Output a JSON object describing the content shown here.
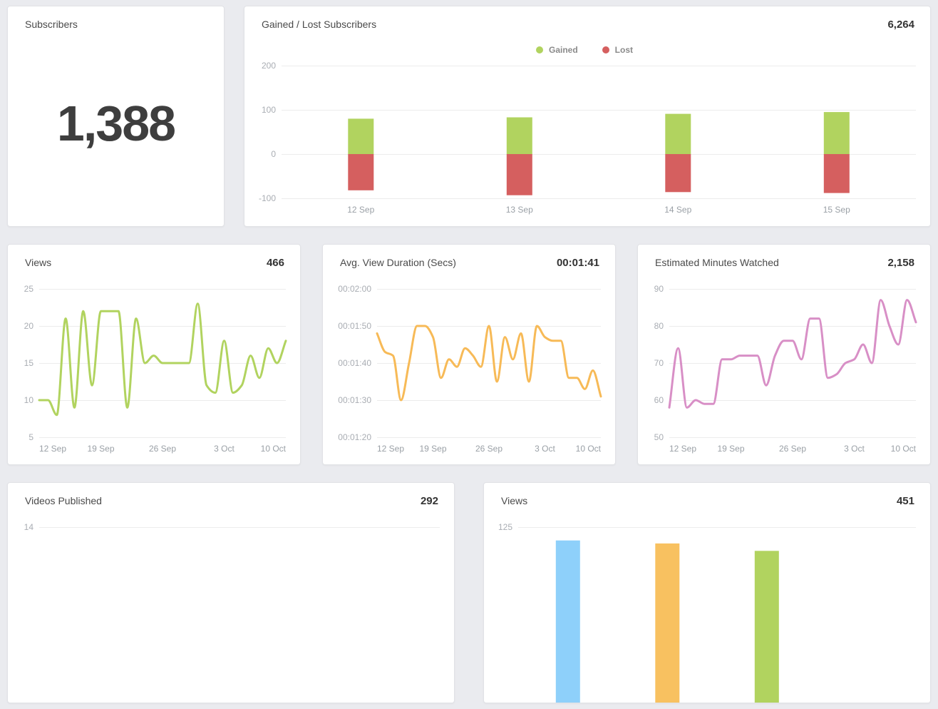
{
  "ui_colors": {
    "background": "#eaebef",
    "card": "#ffffff",
    "title_text": "#4a4a4a",
    "value_text": "#333333",
    "tick_text": "#a9adb3",
    "axis_label_text": "#9aa0a6",
    "grid_line": "#ececec",
    "legend_text": "#8a8a8a"
  },
  "cards": {
    "subscribers": {
      "title": "Subscribers",
      "value": "1,388"
    }
  },
  "chart_data": [
    {
      "id": "gained_lost",
      "type": "bar",
      "title": "Gained / Lost Subscribers",
      "headline_value": "6,264",
      "categories": [
        "12 Sep",
        "13 Sep",
        "14 Sep",
        "15 Sep"
      ],
      "series": [
        {
          "name": "Gained",
          "color": "#b1d35f",
          "values": [
            80,
            83,
            91,
            95
          ]
        },
        {
          "name": "Lost",
          "color": "#d55f5f",
          "values": [
            -82,
            -93,
            -86,
            -88
          ]
        }
      ],
      "yticks": [
        200,
        100,
        0,
        -100
      ],
      "ylim": [
        -100,
        200
      ],
      "legend_position": "top-center",
      "grid": true
    },
    {
      "id": "views_line",
      "type": "line",
      "title": "Views",
      "headline_value": "466",
      "color": "#b1d35f",
      "xticks": [
        "12 Sep",
        "19 Sep",
        "26 Sep",
        "3 Oct",
        "10 Oct"
      ],
      "values": [
        10,
        10,
        8,
        21,
        9,
        22,
        12,
        22,
        22,
        22,
        9,
        21,
        15,
        16,
        15,
        15,
        15,
        15,
        23,
        12,
        11,
        18,
        11,
        12,
        16,
        13,
        17,
        15,
        18
      ],
      "yticks": [
        25,
        20,
        15,
        10,
        5
      ],
      "ylim": [
        5,
        25
      ],
      "grid": true
    },
    {
      "id": "avg_view_duration",
      "type": "line",
      "title": "Avg. View Duration (Secs)",
      "headline_value": "00:01:41",
      "color": "#f7ba57",
      "xticks": [
        "12 Sep",
        "19 Sep",
        "26 Sep",
        "3 Oct",
        "10 Oct"
      ],
      "values": [
        108,
        103,
        102,
        90,
        100,
        110,
        110,
        107,
        96,
        101,
        99,
        104,
        102,
        99,
        110,
        95,
        107,
        101,
        108,
        95,
        110,
        107,
        106,
        106,
        96,
        96,
        93,
        98,
        91
      ],
      "yticks": [
        120,
        110,
        100,
        90,
        80
      ],
      "ytick_labels": [
        "00:02:00",
        "00:01:50",
        "00:01:40",
        "00:01:30",
        "00:01:20"
      ],
      "ylim": [
        80,
        120
      ],
      "grid": true
    },
    {
      "id": "est_minutes_watched",
      "type": "line",
      "title": "Estimated Minutes Watched",
      "headline_value": "2,158",
      "color": "#d88fc6",
      "xticks": [
        "12 Sep",
        "19 Sep",
        "26 Sep",
        "3 Oct",
        "10 Oct"
      ],
      "values": [
        58,
        74,
        58,
        60,
        59,
        59,
        71,
        71,
        72,
        72,
        72,
        64,
        72,
        76,
        76,
        71,
        82,
        82,
        66,
        67,
        70,
        71,
        75,
        70,
        87,
        80,
        75,
        87,
        81
      ],
      "yticks": [
        90,
        80,
        70,
        60,
        50
      ],
      "ylim": [
        50,
        90
      ],
      "grid": true
    },
    {
      "id": "videos_published",
      "type": "line",
      "title": "Videos Published",
      "headline_value": "292",
      "yticks": [
        14
      ],
      "values": [],
      "grid": true
    },
    {
      "id": "views_daily",
      "type": "bar",
      "title": "Views",
      "headline_value": "451",
      "yticks": [
        125
      ],
      "ylim": [
        0,
        125
      ],
      "category_slots": 4,
      "bars": [
        {
          "color": "#8ed0fa",
          "value": 116
        },
        {
          "color": "#f8c160",
          "value": 114
        },
        {
          "color": "#b1d35f",
          "value": 109
        }
      ],
      "grid": true
    }
  ]
}
